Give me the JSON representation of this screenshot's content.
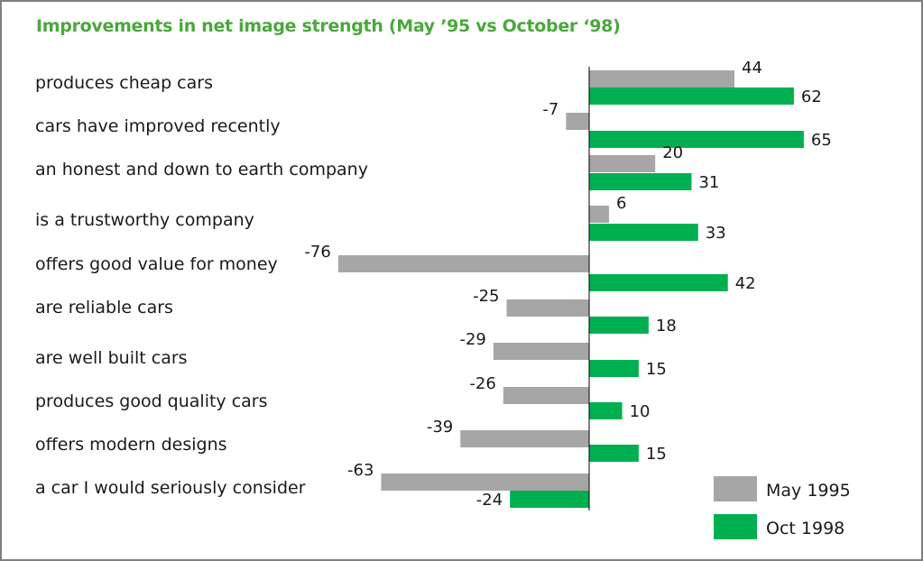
{
  "chart_data": {
    "type": "bar",
    "orientation": "horizontal",
    "title": "Improvements in net image strength (May ’95 vs October ‘98)",
    "xlabel": "",
    "ylabel": "",
    "grid": false,
    "legend_position": "bottom-right",
    "categories": [
      "produces cheap cars",
      "cars have improved recently",
      "an honest and down to earth company",
      "is a trustworthy company",
      "offers good value for money",
      "are reliable cars",
      "are well built cars",
      "produces good quality cars",
      "offers modern designs",
      "a car I would seriously consider"
    ],
    "series": [
      {
        "name": "May 1995",
        "color": "#a6a6a6",
        "values": [
          44,
          -7,
          20,
          6,
          -76,
          -25,
          -29,
          -26,
          -39,
          -63
        ]
      },
      {
        "name": "Oct  1998",
        "color": "#00b050",
        "values": [
          62,
          65,
          31,
          33,
          42,
          18,
          15,
          10,
          15,
          -24
        ]
      }
    ],
    "xlim": [
      -80,
      70
    ]
  }
}
